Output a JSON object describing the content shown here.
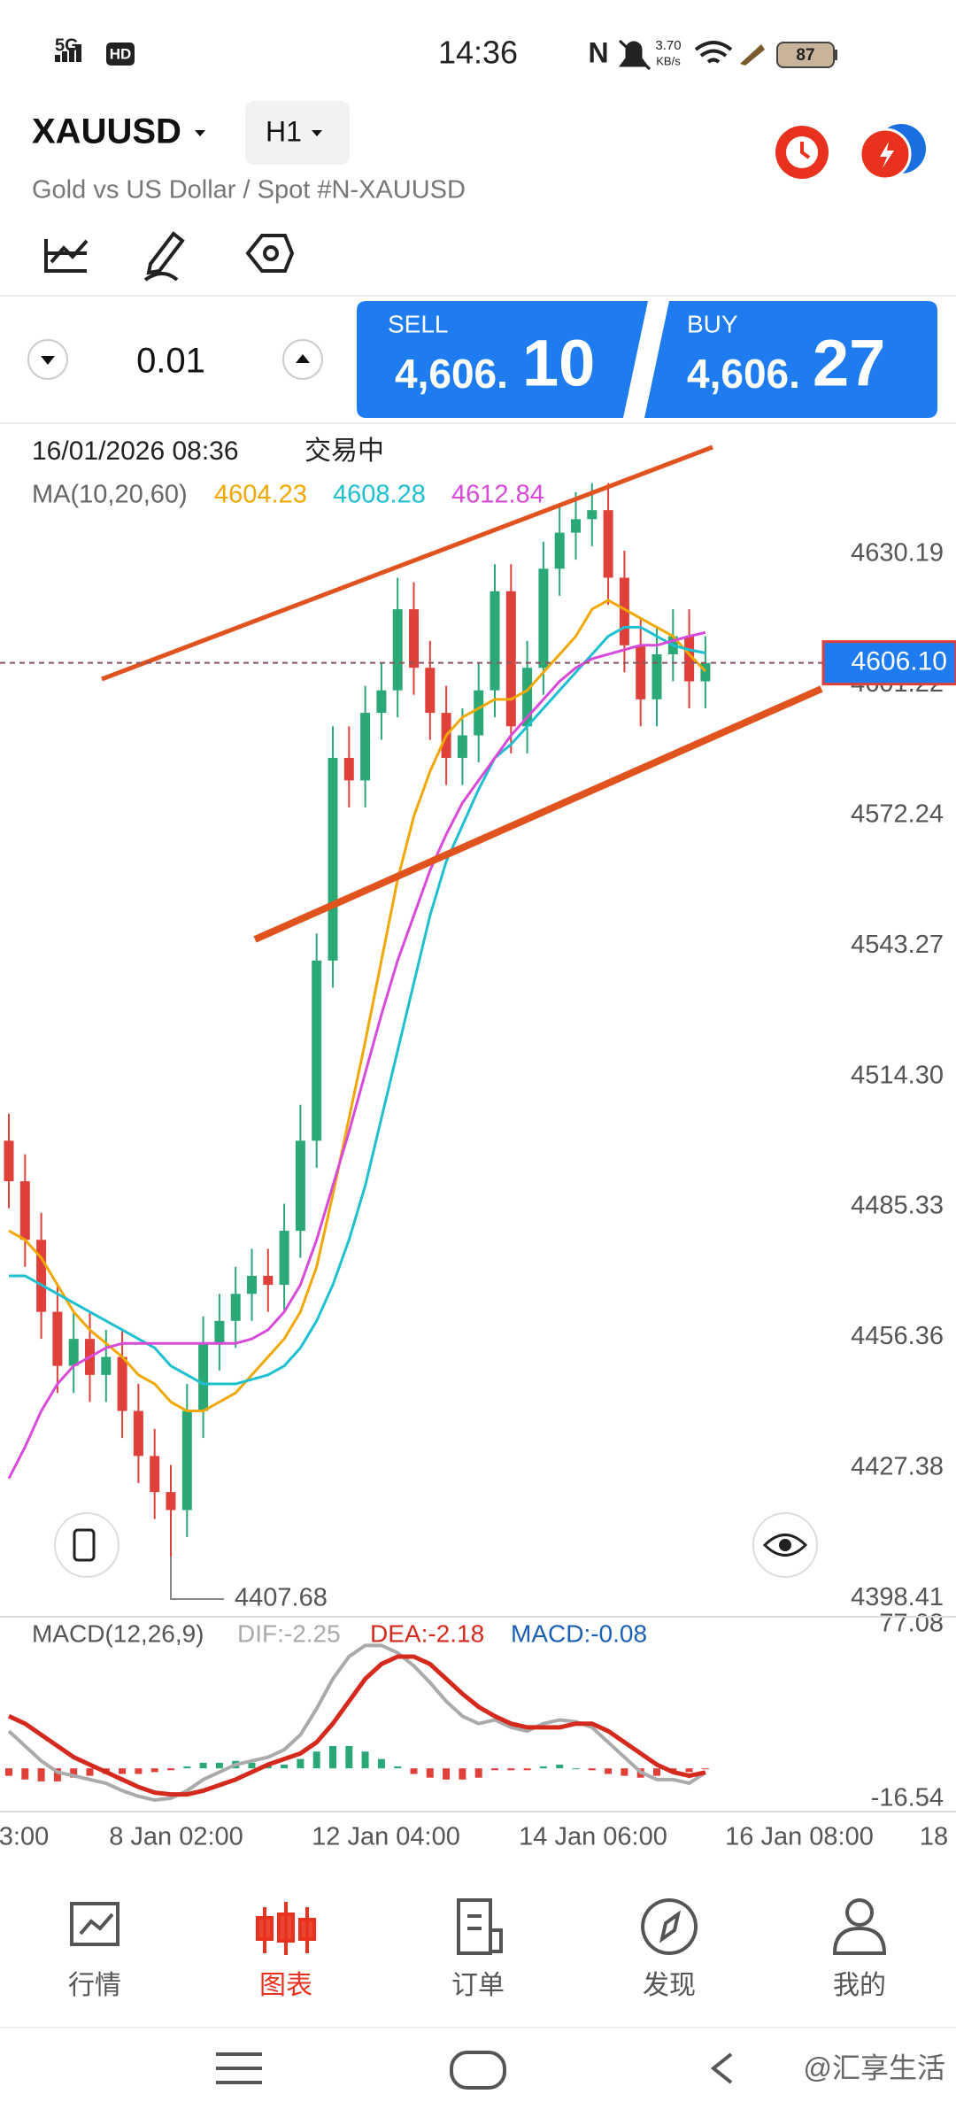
{
  "status_bar": {
    "network": "5G",
    "hd": "HD",
    "time": "14:36",
    "speed": "3.70",
    "speed_unit": "KB/s",
    "battery": "87"
  },
  "header": {
    "symbol": "XAUUSD",
    "timeframe": "H1",
    "description": "Gold vs US Dollar / Spot #N-XAUUSD"
  },
  "trade": {
    "volume": "0.01",
    "sell_label": "SELL",
    "sell_int": "4,606.",
    "sell_dec": "10",
    "buy_label": "BUY",
    "buy_int": "4,606.",
    "buy_dec": "27"
  },
  "chart_data": {
    "type": "candlestick",
    "timestamp": "16/01/2026 08:36",
    "status": "交易中",
    "ma_label": "MA(10,20,60)",
    "open": [
      4500,
      4491,
      4478,
      4462,
      4450,
      4456,
      4448,
      4452,
      4440,
      4430,
      4422,
      4418,
      4440,
      4455,
      4460,
      4466,
      4470,
      4468,
      4480,
      4500,
      4540,
      4585,
      4580,
      4595,
      4600,
      4618,
      4605,
      4595,
      4585,
      4590,
      4600,
      4622,
      4592,
      4605,
      4627,
      4635,
      4638,
      4640,
      4625,
      4610,
      4598,
      4608,
      4612,
      4602
    ],
    "high": [
      4506,
      4497,
      4484,
      4468,
      4462,
      4462,
      4458,
      4458,
      4446,
      4436,
      4428,
      4446,
      4461,
      4466,
      4472,
      4476,
      4476,
      4486,
      4508,
      4546,
      4592,
      4592,
      4601,
      4606,
      4625,
      4624,
      4611,
      4601,
      4596,
      4606,
      4628,
      4628,
      4611,
      4633,
      4641,
      4644,
      4646,
      4646,
      4631,
      4616,
      4614,
      4618,
      4618,
      4612
    ],
    "low": [
      4485,
      4472,
      4456,
      4444,
      4444,
      4442,
      4442,
      4434,
      4424,
      4416,
      4407.68,
      4412,
      4434,
      4449,
      4454,
      4460,
      4462,
      4462,
      4474,
      4494,
      4534,
      4574,
      4574,
      4589,
      4594,
      4599,
      4589,
      4579,
      4579,
      4584,
      4594,
      4586,
      4586,
      4599,
      4621,
      4629,
      4632,
      4619,
      4604,
      4592,
      4592,
      4602,
      4596,
      4596
    ],
    "close": [
      4491,
      4478,
      4462,
      4450,
      4456,
      4448,
      4452,
      4440,
      4430,
      4422,
      4418,
      4440,
      4455,
      4460,
      4466,
      4470,
      4468,
      4480,
      4500,
      4540,
      4585,
      4580,
      4595,
      4600,
      4618,
      4605,
      4595,
      4585,
      4590,
      4600,
      4622,
      4592,
      4605,
      4627,
      4635,
      4638,
      4640,
      4625,
      4610,
      4598,
      4608,
      4612,
      4602,
      4606.1
    ],
    "up_color": "#2aa876",
    "down_color": "#e0403a",
    "ma": [
      {
        "color": "#f0a800",
        "values": [
          4480,
          4478,
          4474,
          4468,
          4462,
          4458,
          4455,
          4452,
          4448,
          4446,
          4442,
          4440,
          4440,
          4442,
          4444,
          4448,
          4452,
          4456,
          4462,
          4472,
          4488,
          4505,
          4522,
          4540,
          4558,
          4572,
          4582,
          4590,
          4594,
          4596,
          4598,
          4598,
          4600,
          4604,
          4608,
          4612,
          4618,
          4620,
          4618,
          4616,
          4614,
          4612,
          4608,
          4604.23
        ]
      },
      {
        "color": "#1ec0d0",
        "values": [
          4470,
          4470,
          4468,
          4466,
          4464,
          4462,
          4460,
          4458,
          4456,
          4454,
          4450,
          4448,
          4446,
          4446,
          4446,
          4447,
          4448,
          4450,
          4454,
          4460,
          4468,
          4478,
          4490,
          4505,
          4520,
          4535,
          4550,
          4562,
          4570,
          4578,
          4585,
          4588,
          4592,
          4596,
          4600,
          4604,
          4608,
          4612,
          4614,
          4614,
          4612,
          4610,
          4609,
          4608.28
        ]
      },
      {
        "color": "#d84ad8",
        "values": [
          4425,
          4432,
          4440,
          4446,
          4450,
          4452,
          4454,
          4455,
          4455,
          4455,
          4455,
          4455,
          4455,
          4455,
          4455,
          4456,
          4458,
          4462,
          4468,
          4478,
          4490,
          4502,
          4515,
          4528,
          4540,
          4550,
          4560,
          4568,
          4575,
          4580,
          4585,
          4590,
          4594,
          4598,
          4602,
          4605,
          4607,
          4608,
          4609,
          4610,
          4610,
          4611,
          4612,
          4612.84
        ]
      }
    ],
    "ylim": [
      4394.5,
      4659.3
    ],
    "yticks": [
      4630.19,
      4601.22,
      4572.24,
      4543.27,
      {
        "value": 4514.3,
        "label": "4514.30"
      },
      4485.33,
      4456.36,
      4427.38,
      4398.41
    ],
    "grid": true,
    "current_price": {
      "value": 4606.1,
      "label": "4606.10"
    },
    "low_marker": 4407.68,
    "x_labels": [
      "3:00",
      "8 Jan 02:00",
      "12 Jan 04:00",
      "14 Jan 06:00",
      "16 Jan 08:00",
      "18"
    ],
    "macd": {
      "label": "MACD(12,26,9)",
      "dif_label": "DIF:-2.25",
      "dea_label": "DEA:-2.18",
      "macd_label": "MACD:-0.08",
      "dif": {
        "color": "#aaaaaa",
        "values": [
          20,
          12,
          4,
          -2,
          -4,
          -6,
          -8,
          -12,
          -15,
          -17,
          -16,
          -12,
          -6,
          -2,
          2,
          4,
          6,
          10,
          18,
          32,
          48,
          60,
          66,
          66,
          62,
          55,
          46,
          36,
          28,
          24,
          26,
          22,
          20,
          24,
          26,
          25,
          22,
          14,
          6,
          -2,
          -6,
          -6,
          -8,
          -2.25
        ]
      },
      "dea": {
        "color": "#d42a1e",
        "values": [
          28,
          24,
          18,
          12,
          6,
          2,
          -2,
          -6,
          -10,
          -13,
          -14,
          -14,
          -12,
          -9,
          -6,
          -2,
          2,
          5,
          8,
          14,
          24,
          36,
          48,
          56,
          60,
          60,
          56,
          48,
          40,
          33,
          28,
          24,
          22,
          22,
          22,
          24,
          24,
          20,
          14,
          8,
          2,
          -2,
          -4,
          -2.18
        ]
      },
      "histogram": [
        -4,
        -6,
        -7,
        -7,
        -5,
        -4,
        -3,
        -3,
        -3,
        -2,
        -1,
        1,
        3,
        3,
        4,
        3,
        2,
        2,
        5,
        9,
        12,
        12,
        9,
        5,
        1,
        -3,
        -5,
        -6,
        -6,
        -5,
        -1,
        -1,
        -1,
        1,
        2,
        0,
        -1,
        -3,
        -4,
        -5,
        -4,
        -2,
        -2,
        -0.08
      ],
      "ylim": [
        -16.54,
        77.08
      ],
      "yticks": [
        77.08,
        -16.54
      ]
    }
  },
  "nav": {
    "items": [
      "行情",
      "图表",
      "订单",
      "发现",
      "我的"
    ],
    "active": 1,
    "active_color": "#e8321e",
    "color": "#555555"
  },
  "watermark": "@汇享生活"
}
